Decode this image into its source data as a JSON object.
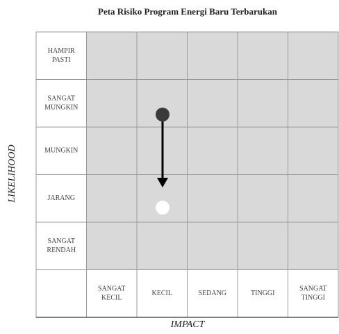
{
  "title": "Peta Risiko Program Energi Baru Terbarukan",
  "y_axis_label": "LIKELIHOOD",
  "x_axis_label": "IMPACT",
  "likelihood_levels": [
    [
      "HAMPIR",
      "PASTI"
    ],
    [
      "SANGAT",
      "MUNGKIN"
    ],
    [
      "MUNGKIN"
    ],
    [
      "JARANG"
    ],
    [
      "SANGAT",
      "RENDAH"
    ]
  ],
  "impact_levels": [
    [
      "SANGAT",
      "KECIL"
    ],
    [
      "KECIL"
    ],
    [
      "SEDANG"
    ],
    [
      "TINGGI"
    ],
    [
      "SANGAT",
      "TINGGI"
    ]
  ]
}
